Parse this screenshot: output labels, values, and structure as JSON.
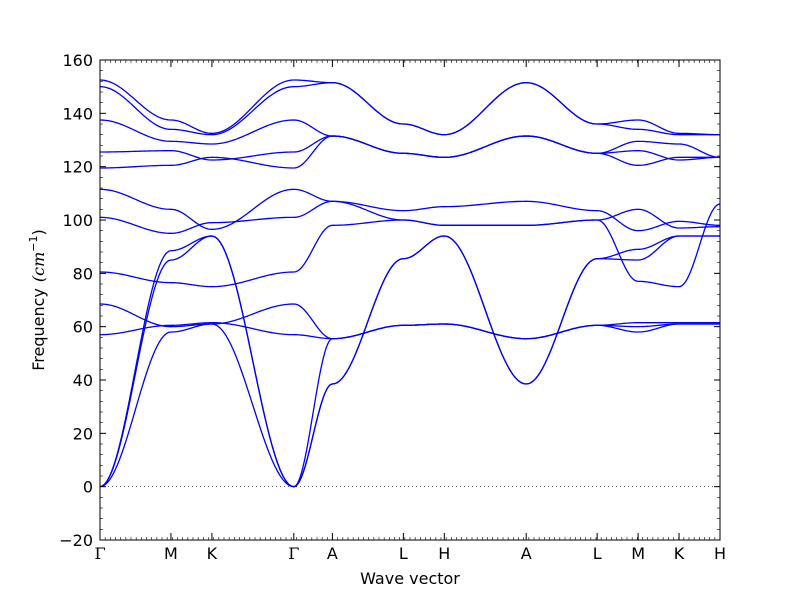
{
  "chart_data": {
    "type": "line",
    "xlabel": "Wave vector",
    "ylabel": "Frequency",
    "ylabel_unit": "(cm",
    "ylabel_unit_exponent": "−1",
    "ylabel_close": ")",
    "ylim": [
      -20,
      160
    ],
    "y_ticks": [
      -20,
      0,
      20,
      40,
      60,
      80,
      100,
      120,
      140,
      160
    ],
    "grid": false,
    "legend": "none",
    "zero_line": "dotted",
    "line_color": "#0000ff",
    "high_symmetry_points": [
      "Γ",
      "M",
      "K",
      "Γ",
      "A",
      "L",
      "H",
      "A",
      "L",
      "M",
      "K",
      "H"
    ],
    "path_position": [
      0.0,
      1.0,
      1.577,
      2.731,
      3.275,
      4.275,
      4.852,
      6.006,
      7.006,
      7.583,
      8.16,
      8.737
    ],
    "bands": [
      [
        0.0,
        85.0,
        94.0,
        0.0,
        38.5,
        85.5,
        94.0,
        38.5,
        85.5,
        85.0,
        94.0,
        94.0
      ],
      [
        0.0,
        88.5,
        94.0,
        0.0,
        38.5,
        85.5,
        94.0,
        38.5,
        85.5,
        89.0,
        94.0,
        94.0
      ],
      [
        0.0,
        58.0,
        61.0,
        0.0,
        55.5,
        60.5,
        61.0,
        55.5,
        60.5,
        58.0,
        61.0,
        61.0
      ],
      [
        57.0,
        60.5,
        61.5,
        57.0,
        55.5,
        60.5,
        61.0,
        55.5,
        60.5,
        61.5,
        61.5,
        61.5
      ],
      [
        68.5,
        60.0,
        61.0,
        68.5,
        55.5,
        60.5,
        61.0,
        55.5,
        60.5,
        60.0,
        61.0,
        61.0
      ],
      [
        80.5,
        76.5,
        75.0,
        80.5,
        98.0,
        100.0,
        98.0,
        98.0,
        100.0,
        77.0,
        75.0,
        106.0
      ],
      [
        101.0,
        95.0,
        99.0,
        101.0,
        107.0,
        103.5,
        105.0,
        107.0,
        103.5,
        96.0,
        99.5,
        98.0
      ],
      [
        111.5,
        104.0,
        96.5,
        111.5,
        107.0,
        100.0,
        98.0,
        98.0,
        100.0,
        104.0,
        97.0,
        97.5
      ],
      [
        119.5,
        120.5,
        123.5,
        119.5,
        131.5,
        125.0,
        123.5,
        131.5,
        125.0,
        120.5,
        123.5,
        123.5
      ],
      [
        125.5,
        126.0,
        122.5,
        125.5,
        131.5,
        125.0,
        123.5,
        131.5,
        125.0,
        126.0,
        122.5,
        123.5
      ],
      [
        137.5,
        129.5,
        128.5,
        137.5,
        131.5,
        125.0,
        123.5,
        131.5,
        125.0,
        129.5,
        128.5,
        123.5
      ],
      [
        150.0,
        134.0,
        132.0,
        150.0,
        151.5,
        136.0,
        132.0,
        151.5,
        136.0,
        134.0,
        132.0,
        132.0
      ],
      [
        152.5,
        137.5,
        132.5,
        152.5,
        151.5,
        136.0,
        132.0,
        151.5,
        136.0,
        137.5,
        132.5,
        132.0
      ]
    ]
  }
}
